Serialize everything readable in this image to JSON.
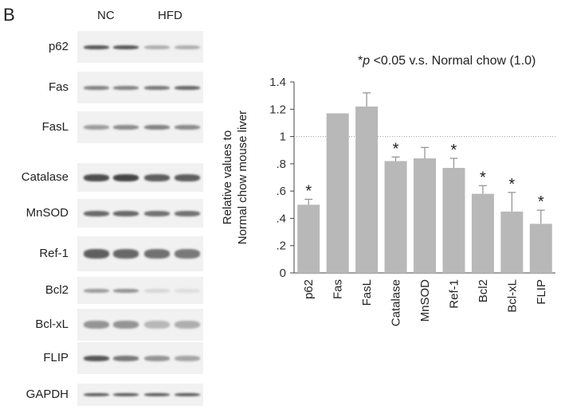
{
  "figure": {
    "panel_letter": "B",
    "groups": [
      "NC",
      "HFD"
    ]
  },
  "blots": [
    {
      "label": "p62",
      "bands": [
        0.85,
        0.85,
        0.35,
        0.35
      ],
      "thickness": 5
    },
    {
      "label": "Fas",
      "bands": [
        0.6,
        0.6,
        0.65,
        0.75
      ],
      "thickness": 5
    },
    {
      "label": "FasL",
      "bands": [
        0.45,
        0.55,
        0.6,
        0.55
      ],
      "thickness": 6
    },
    {
      "label": "Catalase",
      "bands": [
        0.9,
        0.95,
        0.8,
        0.8
      ],
      "thickness": 9
    },
    {
      "label": "MnSOD",
      "bands": [
        0.75,
        0.75,
        0.7,
        0.7
      ],
      "thickness": 7
    },
    {
      "label": "Ref-1",
      "bands": [
        0.8,
        0.75,
        0.7,
        0.65
      ],
      "thickness": 12
    },
    {
      "label": "Bcl2",
      "bands": [
        0.45,
        0.5,
        0.12,
        0.08
      ],
      "thickness": 5
    },
    {
      "label": "Bcl-xL",
      "bands": [
        0.5,
        0.5,
        0.3,
        0.35
      ],
      "thickness": 10
    },
    {
      "label": "FLIP",
      "bands": [
        0.85,
        0.65,
        0.5,
        0.4
      ],
      "thickness": 7
    },
    {
      "label": "GAPDH",
      "bands": [
        0.8,
        0.8,
        0.8,
        0.8
      ],
      "thickness": 4
    }
  ],
  "chart_data": {
    "type": "bar",
    "categories": [
      "p62",
      "Fas",
      "FasL",
      "Catalase",
      "MnSOD",
      "Ref-1",
      "Bcl2",
      "Bcl-xL",
      "FLIP"
    ],
    "values": [
      0.5,
      1.17,
      1.22,
      0.82,
      0.84,
      0.77,
      0.58,
      0.45,
      0.36
    ],
    "errors": [
      0.04,
      0.0,
      0.1,
      0.03,
      0.08,
      0.07,
      0.06,
      0.14,
      0.1
    ],
    "significant": [
      true,
      false,
      false,
      true,
      false,
      true,
      true,
      true,
      true
    ],
    "significance_marker": "*",
    "reference_line": 1.0,
    "ylim": [
      0,
      1.4
    ],
    "yticks": [
      0,
      0.2,
      0.4,
      0.6,
      0.8,
      1.0,
      1.2,
      1.4
    ],
    "ytick_labels": [
      "0",
      ".2",
      ".4",
      ".6",
      ".8",
      "1",
      "1.2",
      "1.4"
    ],
    "ylabel_line1": "Relative values to",
    "ylabel_line2": "Normal chow mouse liver",
    "annotation_star": "*",
    "annotation_p": "p",
    "annotation_text": " <0.05 v.s. Normal chow (1.0)",
    "bar_color": "#b8b8b8",
    "error_color": "#8f8f8f"
  }
}
